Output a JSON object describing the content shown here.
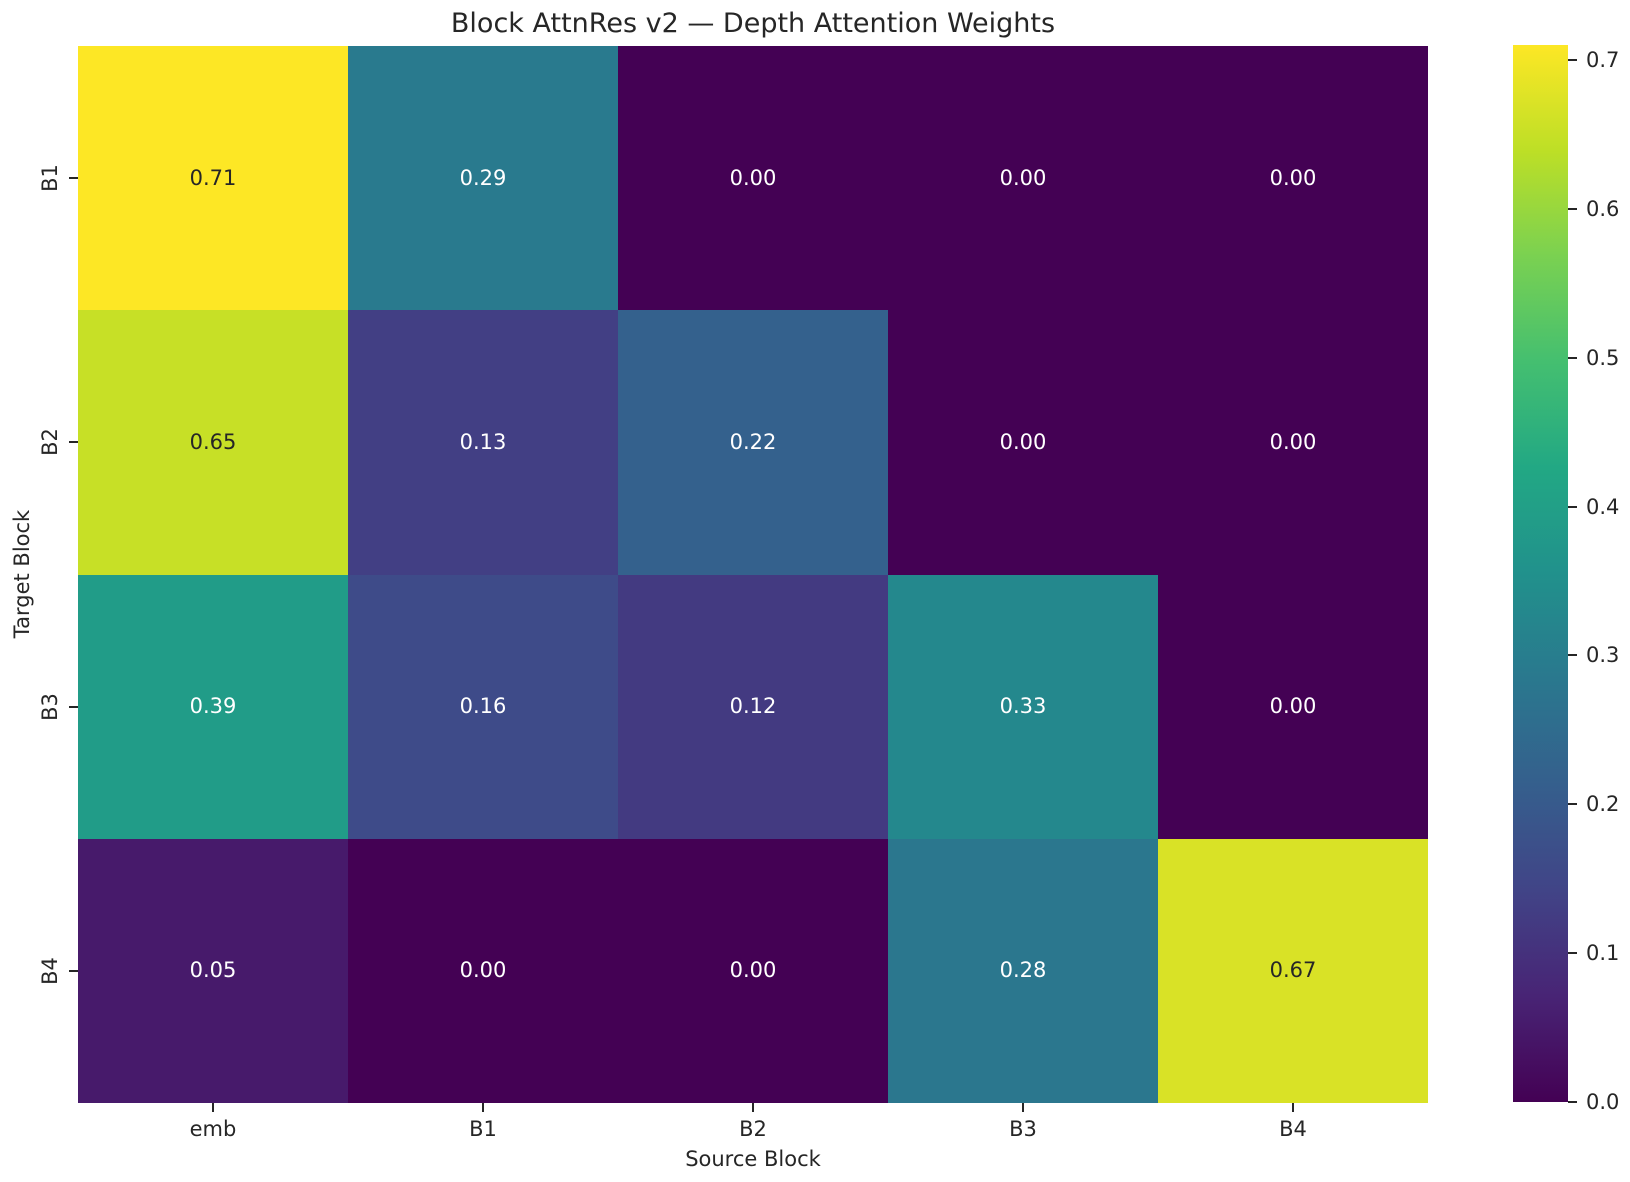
{
  "chart_data": {
    "type": "heatmap",
    "title": "Block AttnRes v2 — Depth Attention Weights",
    "xlabel": "Source Block",
    "ylabel": "Target Block",
    "x_categories": [
      "emb",
      "B1",
      "B2",
      "B3",
      "B4"
    ],
    "y_categories": [
      "B1",
      "B2",
      "B3",
      "B4"
    ],
    "values": [
      [
        0.71,
        0.29,
        0.0,
        0.0,
        0.0
      ],
      [
        0.65,
        0.13,
        0.22,
        0.0,
        0.0
      ],
      [
        0.39,
        0.16,
        0.12,
        0.33,
        0.0
      ],
      [
        0.05,
        0.0,
        0.0,
        0.28,
        0.67
      ]
    ],
    "annotation_decimals": 2,
    "annotation_colors": {
      "on_dark": "#ffffff",
      "on_light": "#262626"
    },
    "grid": false,
    "colormap": {
      "name": "viridis",
      "vmin": 0.0,
      "vmax": 0.71,
      "stops": [
        "#440154",
        "#482475",
        "#414487",
        "#355f8d",
        "#2a788e",
        "#21918c",
        "#22a884",
        "#44bf70",
        "#7ad151",
        "#bddf26",
        "#fde725"
      ]
    },
    "colorbar": {
      "position": "right",
      "tick_values": [
        0.7,
        0.6,
        0.5,
        0.4,
        0.3,
        0.2,
        0.1,
        0.0
      ],
      "tick_labels": [
        "0.7",
        "0.6",
        "0.5",
        "0.4",
        "0.3",
        "0.2",
        "0.1",
        "0.0"
      ]
    },
    "tick_color": "#262626",
    "text_color": "#262626",
    "background_color": "#ffffff"
  }
}
